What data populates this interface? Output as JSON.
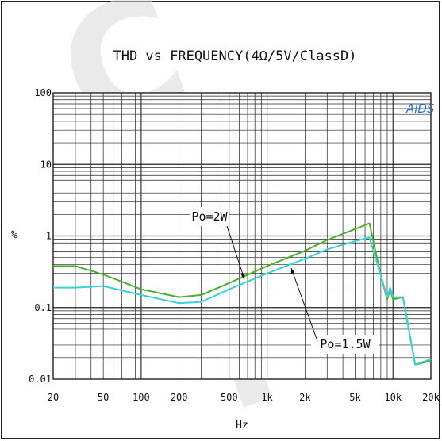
{
  "chart_data": {
    "type": "line",
    "title": "THD vs FREQUENCY(4Ω/5V/ClassD)",
    "xlabel": "Hz",
    "ylabel": "%",
    "x_scale": "log",
    "y_scale": "log",
    "xlim": [
      20,
      20000
    ],
    "ylim": [
      0.01,
      100
    ],
    "grid": true,
    "x_ticks": [
      {
        "value": 20,
        "label": "20"
      },
      {
        "value": 50,
        "label": "50"
      },
      {
        "value": 100,
        "label": "100"
      },
      {
        "value": 200,
        "label": "200"
      },
      {
        "value": 500,
        "label": "500"
      },
      {
        "value": 1000,
        "label": "1k"
      },
      {
        "value": 2000,
        "label": "2k"
      },
      {
        "value": 5000,
        "label": "5k"
      },
      {
        "value": 10000,
        "label": "10k"
      },
      {
        "value": 20000,
        "label": "20k"
      }
    ],
    "y_ticks": [
      {
        "value": 100,
        "label": "100"
      },
      {
        "value": 10,
        "label": "10"
      },
      {
        "value": 1,
        "label": "1"
      },
      {
        "value": 0.1,
        "label": "0.1"
      },
      {
        "value": 0.01,
        "label": "0.01"
      }
    ],
    "series": [
      {
        "name": "Po=2W",
        "color": "#4caf32",
        "points": [
          [
            20,
            0.38
          ],
          [
            30,
            0.38
          ],
          [
            50,
            0.29
          ],
          [
            100,
            0.18
          ],
          [
            200,
            0.14
          ],
          [
            300,
            0.15
          ],
          [
            500,
            0.22
          ],
          [
            1000,
            0.38
          ],
          [
            2000,
            0.62
          ],
          [
            3000,
            0.88
          ],
          [
            5000,
            1.25
          ],
          [
            6500,
            1.5
          ],
          [
            8000,
            0.28
          ],
          [
            9000,
            0.13
          ],
          [
            9500,
            0.18
          ],
          [
            10000,
            0.13
          ],
          [
            12000,
            0.14
          ],
          [
            15000,
            0.016
          ],
          [
            20000,
            0.018
          ]
        ]
      },
      {
        "name": "Po=1.5W",
        "color": "#3ecfd2",
        "points": [
          [
            20,
            0.19
          ],
          [
            30,
            0.19
          ],
          [
            50,
            0.2
          ],
          [
            100,
            0.15
          ],
          [
            200,
            0.115
          ],
          [
            300,
            0.12
          ],
          [
            500,
            0.18
          ],
          [
            1000,
            0.3
          ],
          [
            2000,
            0.48
          ],
          [
            3000,
            0.65
          ],
          [
            5000,
            0.85
          ],
          [
            6500,
            0.95
          ],
          [
            8000,
            0.28
          ],
          [
            9000,
            0.14
          ],
          [
            9500,
            0.19
          ],
          [
            10000,
            0.14
          ],
          [
            12000,
            0.14
          ],
          [
            15000,
            0.016
          ],
          [
            20000,
            0.019
          ]
        ]
      }
    ],
    "annotations": [
      {
        "text": "Po=2W",
        "series": "Po=2W"
      },
      {
        "text": "Po=1.5W",
        "series": "Po=1.5W"
      }
    ]
  },
  "logo_text": "AiDS",
  "watermark_text": "CaWl"
}
